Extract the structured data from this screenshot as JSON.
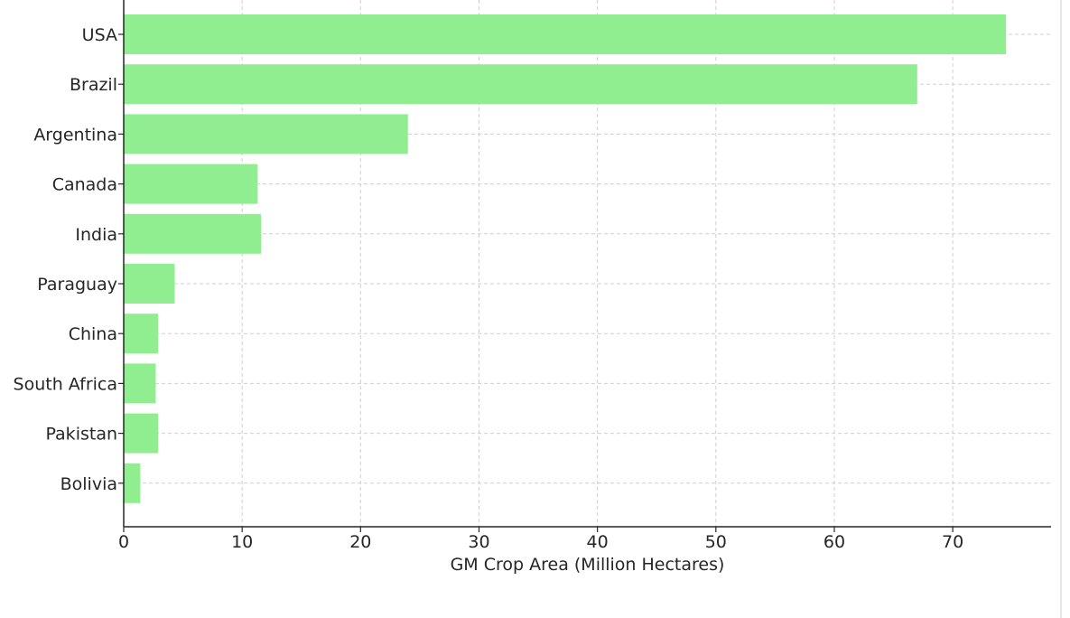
{
  "chart_data": {
    "type": "bar",
    "orientation": "horizontal",
    "categories": [
      "USA",
      "Brazil",
      "Argentina",
      "Canada",
      "India",
      "Paraguay",
      "China",
      "South Africa",
      "Pakistan",
      "Bolivia"
    ],
    "values": [
      74.5,
      67.0,
      24.0,
      11.3,
      11.6,
      4.3,
      2.9,
      2.7,
      2.9,
      1.4
    ],
    "xlabel": "GM Crop Area (Million Hectares)",
    "ylabel": "",
    "title": "",
    "xlim": [
      0,
      78.3
    ],
    "xticks": [
      "0",
      "10",
      "20",
      "30",
      "40",
      "50",
      "60",
      "70"
    ],
    "grid": true,
    "bar_color": "#90ee90",
    "grid_color": "#cfcfcf",
    "axis_color": "#262626"
  }
}
